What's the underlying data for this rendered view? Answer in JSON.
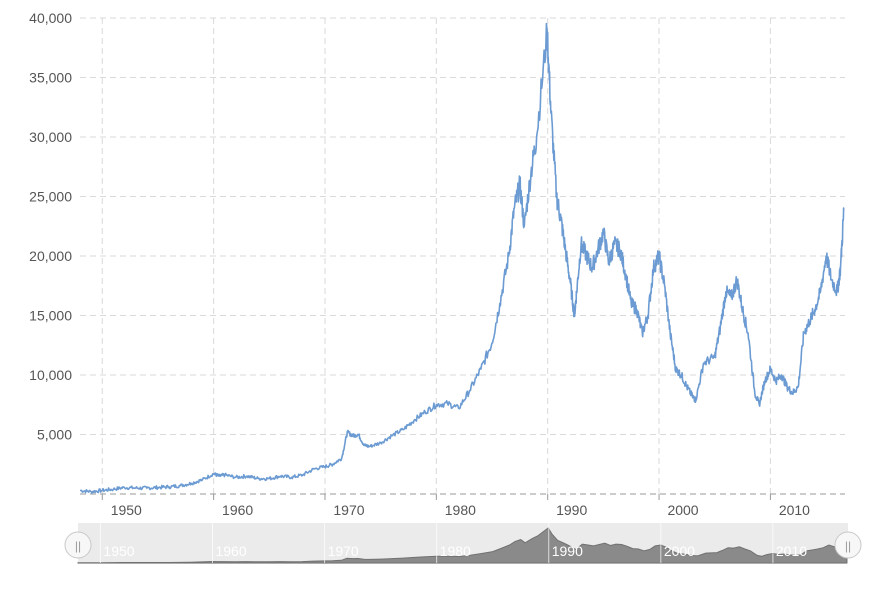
{
  "chart_data": {
    "type": "line",
    "title": "",
    "xlabel": "",
    "ylabel": "",
    "xlim": [
      1948.0,
      2016.7
    ],
    "ylim": [
      0,
      40000
    ],
    "grid": true,
    "legend": "none",
    "y_ticks": [
      {
        "value": 5000,
        "label": "5,000"
      },
      {
        "value": 10000,
        "label": "10,000"
      },
      {
        "value": 15000,
        "label": "15,000"
      },
      {
        "value": 20000,
        "label": "20,000"
      },
      {
        "value": 25000,
        "label": "25,000"
      },
      {
        "value": 30000,
        "label": "30,000"
      },
      {
        "value": 35000,
        "label": "35,000"
      },
      {
        "value": 40000,
        "label": "40,000"
      }
    ],
    "x_ticks": [
      {
        "value": 1950,
        "label": "1950"
      },
      {
        "value": 1960,
        "label": "1960"
      },
      {
        "value": 1970,
        "label": "1970"
      },
      {
        "value": 1980,
        "label": "1980"
      },
      {
        "value": 1990,
        "label": "1990"
      },
      {
        "value": 2000,
        "label": "2000"
      },
      {
        "value": 2010,
        "label": "2010"
      }
    ],
    "series": [
      {
        "color": "#6b9bd2",
        "x": [
          1948.0,
          1949.0,
          1950.0,
          1951.0,
          1952.0,
          1953.0,
          1954.0,
          1955.0,
          1956.0,
          1957.0,
          1958.0,
          1959.0,
          1960.0,
          1960.5,
          1961.0,
          1962.0,
          1963.0,
          1964.0,
          1965.0,
          1966.0,
          1967.0,
          1968.0,
          1969.0,
          1970.0,
          1970.7,
          1971.5,
          1972.0,
          1972.5,
          1973.0,
          1973.5,
          1974.0,
          1975.0,
          1976.0,
          1977.0,
          1978.0,
          1979.0,
          1980.0,
          1981.0,
          1982.0,
          1983.0,
          1984.0,
          1985.0,
          1985.7,
          1986.5,
          1987.0,
          1987.5,
          1987.9,
          1988.5,
          1989.0,
          1989.95,
          1990.3,
          1990.8,
          1991.2,
          1991.6,
          1992.0,
          1992.4,
          1992.6,
          1993.0,
          1993.5,
          1994.0,
          1994.5,
          1995.0,
          1995.5,
          1996.0,
          1996.5,
          1997.0,
          1997.5,
          1998.0,
          1998.5,
          1999.0,
          1999.5,
          2000.0,
          2000.5,
          2001.0,
          2001.5,
          2002.0,
          2002.5,
          2003.0,
          2003.3,
          2004.0,
          2005.0,
          2005.5,
          2006.0,
          2006.5,
          2007.0,
          2007.5,
          2008.0,
          2008.6,
          2009.0,
          2009.5,
          2010.0,
          2010.5,
          2011.0,
          2011.5,
          2012.0,
          2012.5,
          2013.0,
          2013.5,
          2014.0,
          2014.5,
          2015.0,
          2015.5,
          2016.0,
          2016.3,
          2016.6
        ],
        "y": [
          300,
          200,
          300,
          400,
          550,
          500,
          500,
          550,
          600,
          700,
          900,
          1200,
          1700,
          1500,
          1600,
          1400,
          1500,
          1300,
          1300,
          1500,
          1400,
          1600,
          2100,
          2300,
          2500,
          3000,
          5200,
          4900,
          5000,
          4100,
          4000,
          4300,
          4900,
          5400,
          6200,
          6900,
          7500,
          7600,
          7200,
          8700,
          10500,
          12700,
          16000,
          20000,
          24000,
          26000,
          22500,
          27000,
          30000,
          38900,
          32000,
          25000,
          23000,
          20500,
          18000,
          15000,
          17000,
          21000,
          20000,
          19000,
          20500,
          22000,
          19500,
          21000,
          20500,
          18500,
          16000,
          15500,
          13500,
          15000,
          19000,
          20000,
          17500,
          13500,
          10500,
          10000,
          9000,
          8200,
          7900,
          11000,
          11500,
          14000,
          17000,
          16500,
          18000,
          15500,
          13500,
          8500,
          7500,
          9500,
          10500,
          9500,
          10000,
          9000,
          8500,
          9000,
          13500,
          14500,
          15500,
          17000,
          20000,
          18000,
          17000,
          19000,
          23900
        ]
      }
    ]
  },
  "navigator": {
    "x_ticks": [
      {
        "value": 1950,
        "label": "1950"
      },
      {
        "value": 1960,
        "label": "1960"
      },
      {
        "value": 1970,
        "label": "1970"
      },
      {
        "value": 1980,
        "label": "1980"
      },
      {
        "value": 1990,
        "label": "1990"
      },
      {
        "value": 2000,
        "label": "2000"
      },
      {
        "value": 2010,
        "label": "2010"
      }
    ],
    "left_handle_glyph": "||",
    "right_handle_glyph": "||"
  }
}
